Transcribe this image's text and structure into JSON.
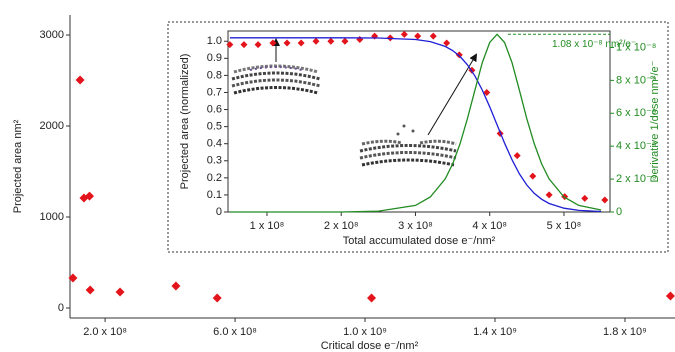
{
  "chart_data": [
    {
      "type": "scatter",
      "x_label": "Critical dose e⁻/nm²",
      "y_label": "Projected area nm²",
      "x": [
        101000000.0,
        123000000.0,
        135000000.0,
        152000000.0,
        154000000.0,
        246000000.0,
        418000000.0,
        545000000.0,
        1020000000.0,
        1940000000.0
      ],
      "values": [
        330,
        2505,
        1209,
        1230,
        198,
        176,
        242,
        110,
        110,
        132
      ],
      "color": "#e3141b",
      "marker": "diamond",
      "xlim": [
        92000000.0,
        1954000000.0
      ],
      "ylim": [
        -110,
        3220
      ],
      "xticks": [
        {
          "value": 200000000.0,
          "label": "2.0 x 10⁸"
        },
        {
          "value": 600000000.0,
          "label": "6.0 x 10⁸"
        },
        {
          "value": 1000000000.0,
          "label": "1.0 x 10⁹"
        },
        {
          "value": 1400000000.0,
          "label": "1.4 x 10⁹"
        },
        {
          "value": 1800000000.0,
          "label": "1.8 x 10⁹"
        }
      ],
      "yticks": [
        0,
        1000,
        2000,
        3000
      ]
    },
    {
      "type": "line",
      "x_label": "Total accumulated dose e⁻/nm²",
      "y_label": "Projected area (normalized)",
      "y2_label": "Derivative 1/dose nm²/e⁻",
      "series": [
        {
          "color": "#e3141b",
          "marker": "diamond",
          "x": [
            50000000.0,
            69000000.0,
            88000000.0,
            108000000.0,
            127000000.0,
            146000000.0,
            166000000.0,
            186000000.0,
            205000000.0,
            225000000.0,
            245000000.0,
            266000000.0,
            285000000.0,
            303000000.0,
            324000000.0,
            342000000.0,
            359000000.0,
            376000000.0,
            396000000.0,
            414000000.0,
            437000000.0,
            458000000.0,
            480000000.0,
            501000000.0,
            528000000.0,
            555000000.0
          ],
          "values": [
            0.98,
            0.98,
            0.98,
            0.99,
            0.99,
            0.99,
            1.0,
            1.0,
            1.0,
            1.01,
            1.03,
            1.02,
            1.04,
            1.03,
            1.03,
            0.99,
            0.92,
            0.83,
            0.7,
            0.46,
            0.33,
            0.21,
            0.1,
            0.09,
            0.08,
            0.07
          ]
        },
        {
          "color": "#1f1fd6",
          "x": [
            50000000.0,
            100000000.0,
            150000000.0,
            200000000.0,
            250000000.0,
            300000000.0,
            320000000.0,
            340000000.0,
            350000000.0,
            360000000.0,
            370000000.0,
            380000000.0,
            390000000.0,
            400000000.0,
            410000000.0,
            420000000.0,
            430000000.0,
            440000000.0,
            450000000.0,
            460000000.0,
            470000000.0,
            480000000.0,
            500000000.0,
            520000000.0,
            550000000.0
          ],
          "values": [
            1.02,
            1.02,
            1.02,
            1.02,
            1.019,
            1.01,
            0.998,
            0.97,
            0.946,
            0.911,
            0.862,
            0.797,
            0.714,
            0.616,
            0.51,
            0.403,
            0.306,
            0.223,
            0.158,
            0.109,
            0.0744,
            0.05,
            0.022,
            0.0096,
            0.0028
          ]
        },
        {
          "color": "#228b22",
          "axis": "y2",
          "x": [
            50000000.0,
            100000000.0,
            150000000.0,
            200000000.0,
            250000000.0,
            300000000.0,
            320000000.0,
            340000000.0,
            350000000.0,
            360000000.0,
            370000000.0,
            380000000.0,
            390000000.0,
            400000000.0,
            410000000.0,
            420000000.0,
            430000000.0,
            440000000.0,
            450000000.0,
            460000000.0,
            470000000.0,
            480000000.0,
            500000000.0,
            520000000.0,
            550000000.0
          ],
          "values": [
            0,
            0,
            0,
            0,
            4.9e-11,
            4.03e-10,
            9.14e-10,
            2.01e-09,
            2.92e-09,
            4.14e-09,
            5.67e-09,
            7.4e-09,
            9.08e-09,
            1.03e-08,
            1.08e-08,
            1.03e-08,
            9.08e-09,
            7.4e-09,
            5.67e-09,
            4.14e-09,
            2.92e-09,
            2.01e-09,
            9.14e-10,
            4.03e-10,
            1.19e-10
          ]
        }
      ],
      "xlim": [
        47500000.0,
        562000000.0
      ],
      "ylim": [
        0,
        1.06
      ],
      "y2lim": [
        0,
        1.1e-08
      ],
      "xticks": [
        {
          "value": 100000000.0,
          "label": "1 x 10⁸"
        },
        {
          "value": 200000000.0,
          "label": "2 x 10⁸"
        },
        {
          "value": 300000000.0,
          "label": "3 x 10⁸"
        },
        {
          "value": 400000000.0,
          "label": "4 x 10⁸"
        },
        {
          "value": 500000000.0,
          "label": "5 x 10⁸"
        }
      ],
      "yticks": [
        0,
        0.1,
        0.2,
        0.3,
        0.4,
        0.5,
        0.6,
        0.7,
        0.8,
        0.9,
        {
          "value": 1,
          "label": "1.0"
        }
      ],
      "y2ticks": [
        0,
        {
          "value": 2e-09,
          "label": "2 x 10⁻⁹"
        },
        {
          "value": 4e-09,
          "label": "4 x 10⁻⁹"
        },
        {
          "value": 6e-09,
          "label": "6 x 10⁻⁹"
        },
        {
          "value": 8e-09,
          "label": "8 x 10⁻⁹"
        },
        {
          "value": 1e-08,
          "label": "1 x 10⁻⁸"
        }
      ],
      "annotation": {
        "text": "1.08 x 10⁻⁸ nm²/e⁻",
        "y": 1.08e-08
      }
    }
  ]
}
